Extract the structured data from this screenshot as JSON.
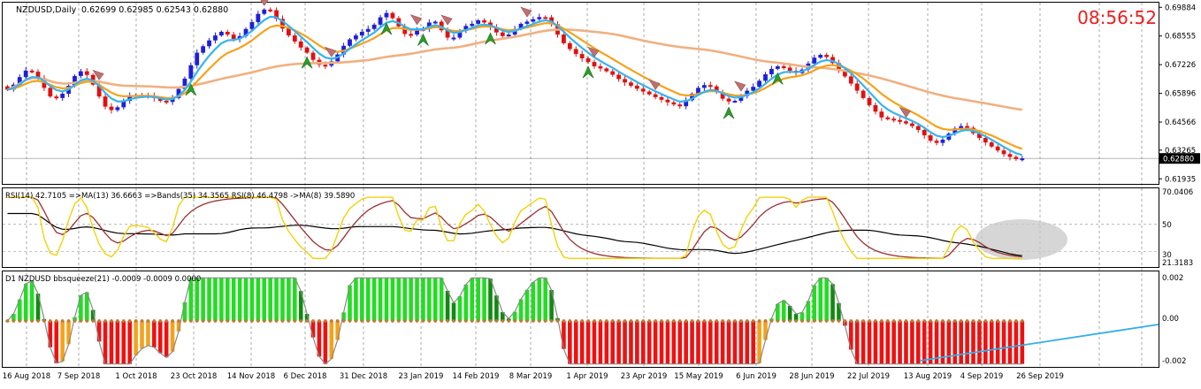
{
  "header": {
    "symbol": "NZDUSD,Daily",
    "ohlc": "0.62699 0.62985 0.62543 0.62880",
    "clock": "08:56:52"
  },
  "price_axis": {
    "labels": [
      "0.69884",
      "0.68555",
      "0.67226",
      "0.65896",
      "0.64566",
      "0.63265",
      "0.61935"
    ],
    "current": "0.62880"
  },
  "rsi_panel": {
    "label": "RSI(14) 42.7105  =>MA(13) 36.6663  =>Bands(35) 34.3565  RSI(8) 46.4798  ->MA(8) 39.5890",
    "axis_labels": [
      "70.0406",
      "50",
      "30",
      "21.3183"
    ]
  },
  "squeeze_panel": {
    "label": "D1 NZDUSD bbsqueeze(21) -0.0009 -0.0009 0.0000",
    "axis_labels": [
      "0.002",
      "0.00",
      "-0.002"
    ]
  },
  "time_axis": [
    "16 Aug 2018",
    "7 Sep 2018",
    "1 Oct 2018",
    "23 Oct 2018",
    "14 Nov 2018",
    "6 Dec 2018",
    "31 Dec 2018",
    "23 Jan 2019",
    "14 Feb 2019",
    "8 Mar 2019",
    "1 Apr 2019",
    "23 Apr 2019",
    "15 May 2019",
    "6 Jun 2019",
    "28 Jun 2019",
    "22 Jul 2019",
    "13 Aug 2019",
    "4 Sep 2019",
    "26 Sep 2019"
  ],
  "colors": {
    "bull": "#1f1fd8",
    "bear": "#e01010",
    "ma_fast": "#36b4ef",
    "ma_mid": "#f5a21b",
    "ma_slow": "#f0b080",
    "rsi_yellow": "#f2d20a",
    "rsi_brown": "#9b3030",
    "rsi_black": "#000000",
    "sq_pos_bright": "#22dd22",
    "sq_pos_dark": "#108a10",
    "sq_neg_red": "#ee1111",
    "sq_neg_orange": "#f5a21b",
    "trend_line": "#34aee8",
    "clock": "#ee1c1c"
  },
  "chart_data": {
    "type": "candlestick",
    "timeframe": "Daily",
    "instrument": "NZDUSD",
    "closes": [
      0.6607,
      0.663,
      0.6665,
      0.6695,
      0.669,
      0.666,
      0.6615,
      0.6575,
      0.6568,
      0.6588,
      0.6625,
      0.667,
      0.6692,
      0.6675,
      0.663,
      0.6575,
      0.6528,
      0.6512,
      0.6525,
      0.6555,
      0.658,
      0.6582,
      0.658,
      0.6578,
      0.6568,
      0.6555,
      0.655,
      0.6568,
      0.661,
      0.6658,
      0.672,
      0.6778,
      0.6808,
      0.6835,
      0.6858,
      0.6875,
      0.6862,
      0.6842,
      0.6855,
      0.6888,
      0.692,
      0.6958,
      0.6978,
      0.6975,
      0.6935,
      0.689,
      0.6858,
      0.683,
      0.6802,
      0.6778,
      0.6745,
      0.6722,
      0.6718,
      0.6738,
      0.677,
      0.681,
      0.684,
      0.6858,
      0.6875,
      0.6888,
      0.6908,
      0.6942,
      0.6962,
      0.6938,
      0.69,
      0.6865,
      0.6862,
      0.6888,
      0.6888,
      0.6918,
      0.6922,
      0.6882,
      0.6848,
      0.6848,
      0.688,
      0.6902,
      0.6912,
      0.6928,
      0.6918,
      0.6895,
      0.6872,
      0.6855,
      0.6862,
      0.6888,
      0.6912,
      0.6922,
      0.6933,
      0.6943,
      0.6942,
      0.691,
      0.6862,
      0.6822,
      0.6795,
      0.6772,
      0.6752,
      0.6735,
      0.6715,
      0.6705,
      0.6692,
      0.6676,
      0.6656,
      0.664,
      0.6625,
      0.6611,
      0.6598,
      0.6585,
      0.6572,
      0.656,
      0.6548,
      0.6538,
      0.653,
      0.6558,
      0.6588,
      0.6615,
      0.6628,
      0.6622,
      0.6595,
      0.6565,
      0.6552,
      0.6555,
      0.6578,
      0.6602,
      0.662,
      0.6648,
      0.6678,
      0.6703,
      0.6715,
      0.6709,
      0.6694,
      0.6684,
      0.67,
      0.6728,
      0.6755,
      0.6768,
      0.6758,
      0.673,
      0.67,
      0.6668,
      0.6635,
      0.6602,
      0.6568,
      0.6535,
      0.6505,
      0.6478,
      0.6472,
      0.6466,
      0.646,
      0.645,
      0.6438,
      0.642,
      0.6395,
      0.637,
      0.636,
      0.6375,
      0.6403,
      0.6427,
      0.6438,
      0.643,
      0.6405,
      0.6383,
      0.6362,
      0.6343,
      0.6325,
      0.6308,
      0.6295,
      0.6285,
      0.6288
    ]
  }
}
